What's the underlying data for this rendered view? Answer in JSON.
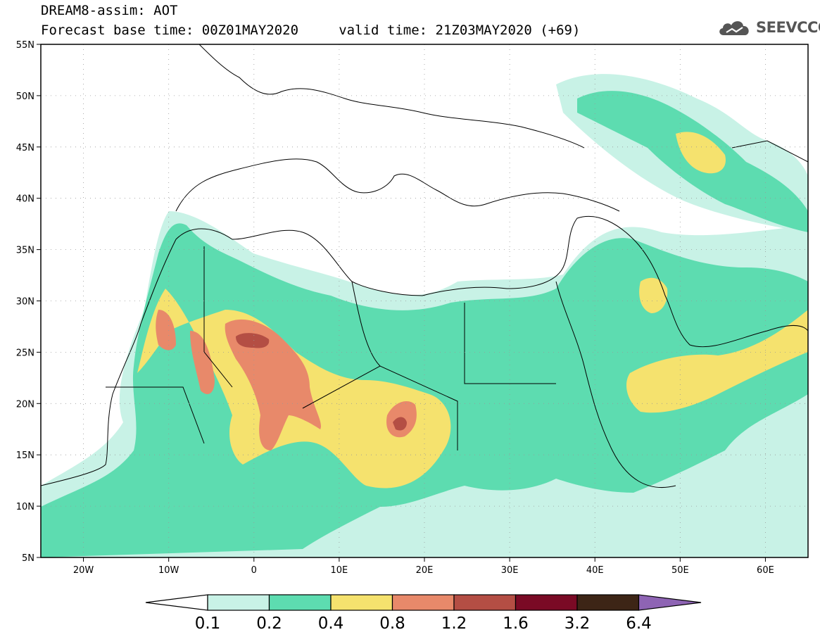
{
  "header": {
    "title_line1": "DREAM8-assim: AOT",
    "title_line2": "Forecast base time: 00Z01MAY2020     valid time: 21Z03MAY2020 (+69)"
  },
  "logo": {
    "text": "SEEVCCC",
    "icon": "cloud-logo-icon"
  },
  "map": {
    "lon_range": [
      -25,
      65
    ],
    "lat_range": [
      5,
      55
    ],
    "lat_ticks": [
      {
        "value": 55,
        "label": "55N"
      },
      {
        "value": 50,
        "label": "50N"
      },
      {
        "value": 45,
        "label": "45N"
      },
      {
        "value": 40,
        "label": "40N"
      },
      {
        "value": 35,
        "label": "35N"
      },
      {
        "value": 30,
        "label": "30N"
      },
      {
        "value": 25,
        "label": "25N"
      },
      {
        "value": 20,
        "label": "20N"
      },
      {
        "value": 15,
        "label": "15N"
      },
      {
        "value": 10,
        "label": "10N"
      },
      {
        "value": 5,
        "label": "5N"
      }
    ],
    "lon_ticks": [
      {
        "value": -20,
        "label": "20W"
      },
      {
        "value": -10,
        "label": "10W"
      },
      {
        "value": 0,
        "label": "0"
      },
      {
        "value": 10,
        "label": "10E"
      },
      {
        "value": 20,
        "label": "20E"
      },
      {
        "value": 30,
        "label": "30E"
      },
      {
        "value": 40,
        "label": "40E"
      },
      {
        "value": 50,
        "label": "50E"
      },
      {
        "value": 60,
        "label": "60E"
      }
    ]
  },
  "colorbar": {
    "colors": [
      "#ffffff",
      "#c8f2e6",
      "#5ddcb0",
      "#f5e26e",
      "#e8896a",
      "#b44e44",
      "#7a0a25",
      "#3d2516",
      "#8e64b4"
    ],
    "levels": [
      "0.1",
      "0.2",
      "0.4",
      "0.8",
      "1.2",
      "1.6",
      "3.2",
      "6.4"
    ]
  },
  "legend_colors": {
    "c1": "#c8f2e6",
    "c2": "#5ddcb0",
    "c3": "#f5e26e",
    "c4": "#e8896a",
    "c5": "#b44e44"
  }
}
